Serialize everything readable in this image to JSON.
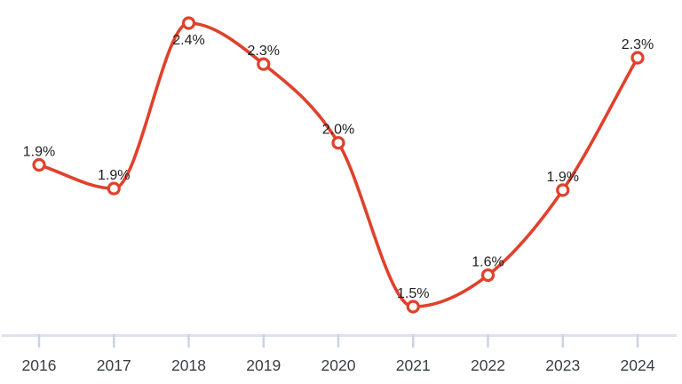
{
  "chart_data": {
    "type": "line",
    "title": "",
    "xlabel": "",
    "ylabel": "",
    "categories": [
      "2016",
      "2017",
      "2018",
      "2019",
      "2020",
      "2021",
      "2022",
      "2023",
      "2024"
    ],
    "values": [
      1.9,
      1.9,
      2.4,
      2.3,
      2.0,
      1.5,
      1.6,
      1.9,
      2.3
    ],
    "values_precise": [
      1.95,
      1.875,
      2.4,
      2.27,
      2.02,
      1.5,
      1.6,
      1.87,
      2.29
    ],
    "point_labels": [
      "1.9%",
      "1.9%",
      "2.4%",
      "2.3%",
      "2.0%",
      "1.5%",
      "1.6%",
      "1.9%",
      "2.3%"
    ],
    "label_placement": [
      "above",
      "above",
      "below",
      "above",
      "above",
      "above",
      "above",
      "above",
      "above"
    ],
    "ylim": [
      1.4,
      2.5
    ],
    "grid": false,
    "legend": false,
    "curve": "smooth-monotone",
    "marker_style": "open-circle",
    "colors": {
      "line": "#e0412c",
      "marker_stroke": "#e0412c",
      "marker_fill": "#ffffff",
      "axis_line": "#dde2ee",
      "tick": "#ccd2e0",
      "x_tick_label": "#3a3e44",
      "data_label": "#1f1f1f",
      "background": "#ffffff"
    }
  }
}
